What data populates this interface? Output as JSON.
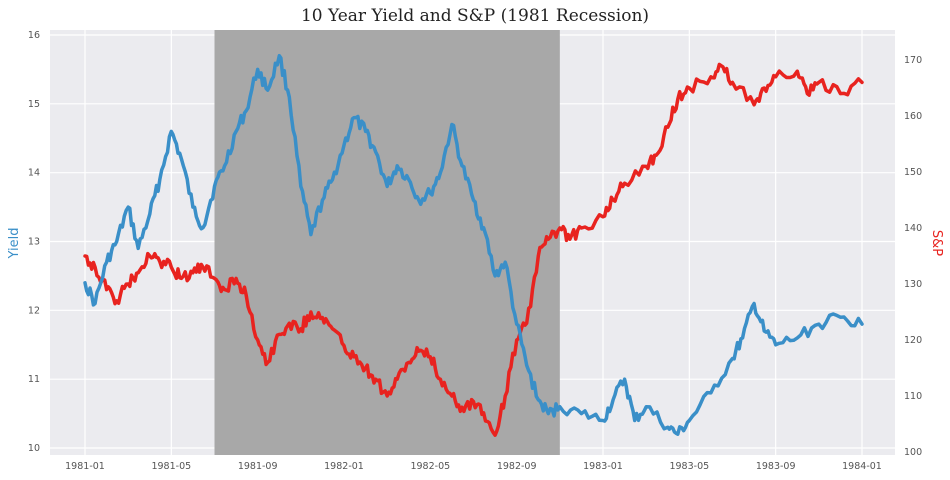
{
  "chart_data": {
    "type": "line",
    "title": "10 Year Yield and S&P (1981 Recession)",
    "ylabel_left": "Yield",
    "ylabel_right": "S&P",
    "x_ticks": [
      "1981-01",
      "1981-05",
      "1981-09",
      "1982-01",
      "1982-05",
      "1982-09",
      "1983-01",
      "1983-05",
      "1983-09",
      "1984-01"
    ],
    "y_left_ticks": [
      "10",
      "11",
      "12",
      "13",
      "14",
      "15",
      "16"
    ],
    "y_right_ticks": [
      "100",
      "110",
      "120",
      "130",
      "140",
      "150",
      "160",
      "170"
    ],
    "y_left_range": [
      10,
      16
    ],
    "y_right_range": [
      100,
      170
    ],
    "x_range": [
      "1981-01",
      "1984-01"
    ],
    "recession_shading": {
      "start": "1981-07",
      "end": "1982-11"
    },
    "grid": true,
    "colors": {
      "yield": "#3a8fc8",
      "sp": "#e8231f",
      "shade": "#a8a8a8",
      "background": "#ebebef",
      "grid": "#ffffff"
    },
    "series": [
      {
        "name": "Yield",
        "axis": "left",
        "points": [
          [
            "1981-01",
            12.4
          ],
          [
            "1981-01-15",
            12.1
          ],
          [
            "1981-02",
            12.7
          ],
          [
            "1981-02-15",
            13.0
          ],
          [
            "1981-03",
            13.5
          ],
          [
            "1981-03-15",
            12.9
          ],
          [
            "1981-04",
            13.4
          ],
          [
            "1981-04-15",
            13.9
          ],
          [
            "1981-05",
            14.6
          ],
          [
            "1981-05-15",
            14.2
          ],
          [
            "1981-06",
            13.5
          ],
          [
            "1981-06-15",
            13.2
          ],
          [
            "1981-07",
            13.8
          ],
          [
            "1981-07-15",
            14.1
          ],
          [
            "1981-08",
            14.6
          ],
          [
            "1981-08-15",
            14.9
          ],
          [
            "1981-09",
            15.5
          ],
          [
            "1981-09-15",
            15.2
          ],
          [
            "1981-10",
            15.7
          ],
          [
            "1981-10-15",
            15.1
          ],
          [
            "1981-11",
            13.8
          ],
          [
            "1981-11-15",
            13.1
          ],
          [
            "1981-12",
            13.6
          ],
          [
            "1981-12-15",
            13.9
          ],
          [
            "1982-01",
            14.4
          ],
          [
            "1982-01-15",
            14.8
          ],
          [
            "1982-02",
            14.6
          ],
          [
            "1982-02-15",
            14.3
          ],
          [
            "1982-03",
            13.8
          ],
          [
            "1982-03-15",
            14.1
          ],
          [
            "1982-04",
            13.9
          ],
          [
            "1982-04-15",
            13.6
          ],
          [
            "1982-05",
            13.7
          ],
          [
            "1982-05-15",
            14.0
          ],
          [
            "1982-06",
            14.7
          ],
          [
            "1982-06-15",
            14.1
          ],
          [
            "1982-07",
            13.6
          ],
          [
            "1982-07-15",
            13.2
          ],
          [
            "1982-08",
            12.5
          ],
          [
            "1982-08-15",
            12.7
          ],
          [
            "1982-09",
            11.8
          ],
          [
            "1982-09-15",
            11.2
          ],
          [
            "1982-10",
            10.7
          ],
          [
            "1982-10-15",
            10.5
          ],
          [
            "1982-11",
            10.6
          ],
          [
            "1982-12",
            10.5
          ],
          [
            "1983-01",
            10.4
          ],
          [
            "1983-01-15",
            10.7
          ],
          [
            "1983-02",
            11.0
          ],
          [
            "1983-02-15",
            10.4
          ],
          [
            "1983-03",
            10.6
          ],
          [
            "1983-04",
            10.3
          ],
          [
            "1983-04-15",
            10.2
          ],
          [
            "1983-05",
            10.4
          ],
          [
            "1983-06",
            10.8
          ],
          [
            "1983-07",
            11.3
          ],
          [
            "1983-07-15",
            11.6
          ],
          [
            "1983-08",
            12.1
          ],
          [
            "1983-08-15",
            11.7
          ],
          [
            "1983-09",
            11.5
          ],
          [
            "1983-10",
            11.6
          ],
          [
            "1983-11",
            11.8
          ],
          [
            "1983-12",
            11.9
          ],
          [
            "1984-01",
            11.8
          ]
        ]
      },
      {
        "name": "S&P",
        "axis": "right",
        "points": [
          [
            "1981-01",
            135
          ],
          [
            "1981-01-15",
            133
          ],
          [
            "1981-02",
            129
          ],
          [
            "1981-02-15",
            127
          ],
          [
            "1981-03",
            130
          ],
          [
            "1981-03-15",
            132
          ],
          [
            "1981-04",
            135
          ],
          [
            "1981-04-15",
            134
          ],
          [
            "1981-05",
            133
          ],
          [
            "1981-05-15",
            131
          ],
          [
            "1981-06",
            132
          ],
          [
            "1981-06-15",
            133
          ],
          [
            "1981-07",
            131
          ],
          [
            "1981-07-15",
            129
          ],
          [
            "1981-08",
            131
          ],
          [
            "1981-08-15",
            128
          ],
          [
            "1981-09",
            120
          ],
          [
            "1981-09-15",
            116
          ],
          [
            "1981-10",
            121
          ],
          [
            "1981-10-15",
            123
          ],
          [
            "1981-11",
            122
          ],
          [
            "1981-11-15",
            125
          ],
          [
            "1981-12",
            124
          ],
          [
            "1981-12-15",
            122
          ],
          [
            "1982-01",
            119
          ],
          [
            "1982-01-15",
            117
          ],
          [
            "1982-02",
            115
          ],
          [
            "1982-02-15",
            113
          ],
          [
            "1982-03",
            110
          ],
          [
            "1982-03-15",
            113
          ],
          [
            "1982-04",
            116
          ],
          [
            "1982-04-15",
            118
          ],
          [
            "1982-05",
            117
          ],
          [
            "1982-05-15",
            113
          ],
          [
            "1982-06",
            110
          ],
          [
            "1982-06-15",
            108
          ],
          [
            "1982-07",
            109
          ],
          [
            "1982-07-15",
            107
          ],
          [
            "1982-08",
            103
          ],
          [
            "1982-08-15",
            110
          ],
          [
            "1982-09",
            120
          ],
          [
            "1982-09-15",
            123
          ],
          [
            "1982-10",
            135
          ],
          [
            "1982-10-15",
            138
          ],
          [
            "1982-11",
            140
          ],
          [
            "1982-11-15",
            138
          ],
          [
            "1982-12",
            140
          ],
          [
            "1983-01",
            142
          ],
          [
            "1983-01-15",
            145
          ],
          [
            "1983-02",
            148
          ],
          [
            "1983-03",
            151
          ],
          [
            "1983-03-15",
            153
          ],
          [
            "1983-04",
            158
          ],
          [
            "1983-04-15",
            163
          ],
          [
            "1983-05",
            165
          ],
          [
            "1983-06",
            167
          ],
          [
            "1983-06-15",
            169
          ],
          [
            "1983-07",
            166
          ],
          [
            "1983-08",
            162
          ],
          [
            "1983-08-15",
            165
          ],
          [
            "1983-09",
            167
          ],
          [
            "1983-10",
            168
          ],
          [
            "1983-10-15",
            164
          ],
          [
            "1983-11",
            166
          ],
          [
            "1983-12",
            164
          ],
          [
            "1984-01",
            166
          ]
        ]
      }
    ]
  }
}
